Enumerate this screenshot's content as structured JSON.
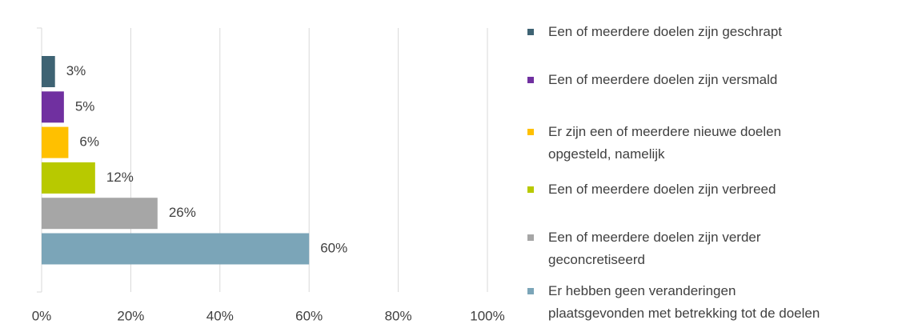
{
  "chart_data": {
    "type": "bar",
    "orientation": "horizontal",
    "categories": [
      "Een of meerdere doelen zijn geschrapt",
      "Een of meerdere doelen zijn versmald",
      "Er zijn een of meerdere nieuwe doelen\nopgesteld, namelijk",
      "Een of meerdere doelen zijn verbreed",
      "Een of meerdere doelen zijn verder\ngeconcretiseerd",
      "Er hebben geen veranderingen\nplaatsgevonden met betrekking tot de doelen"
    ],
    "values": [
      3,
      5,
      6,
      12,
      26,
      60
    ],
    "value_labels": [
      "3%",
      "5%",
      "6%",
      "12%",
      "26%",
      "60%"
    ],
    "colors": [
      "#3e6373",
      "#7030a0",
      "#ffc000",
      "#b8c900",
      "#a6a6a6",
      "#7ba5b8"
    ],
    "xlim": [
      0,
      100
    ],
    "xticks": [
      {
        "value": 0,
        "label": "0%"
      },
      {
        "value": 20,
        "label": "20%"
      },
      {
        "value": 40,
        "label": "40%"
      },
      {
        "value": 60,
        "label": "60%"
      },
      {
        "value": 80,
        "label": "80%"
      },
      {
        "value": 100,
        "label": "100%"
      }
    ],
    "grid": true,
    "legend": "right"
  }
}
